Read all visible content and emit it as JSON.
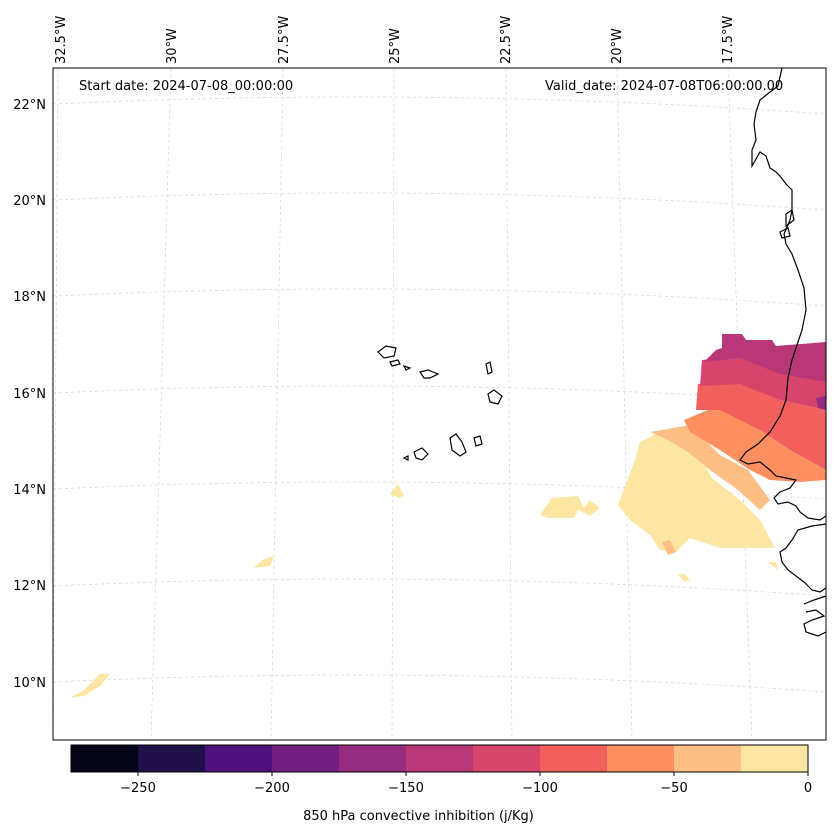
{
  "map": {
    "start_date": "Start date: 2024-07-08_00:00:00",
    "valid_date": "Valid_date: 2024-07-08T06:00:00.00",
    "lon_labels": [
      "32.5°W",
      "30°W",
      "27.5°W",
      "25°W",
      "22.5°W",
      "20°W",
      "17.5°W"
    ],
    "lat_labels": [
      "22°N",
      "20°N",
      "18°N",
      "16°N",
      "14°N",
      "12°N",
      "10°N"
    ],
    "variable": "850 hPa convective inhibition (j/Kg)"
  },
  "colorbar": {
    "ticks": [
      "−250",
      "−200",
      "−150",
      "−100",
      "−50",
      "0"
    ],
    "colors": [
      "#050416",
      "#1f1147",
      "#4c117a",
      "#721f81",
      "#952c80",
      "#b73779",
      "#d8456c",
      "#f1605d",
      "#fd8f60",
      "#febf84",
      "#fde6a3"
    ]
  }
}
